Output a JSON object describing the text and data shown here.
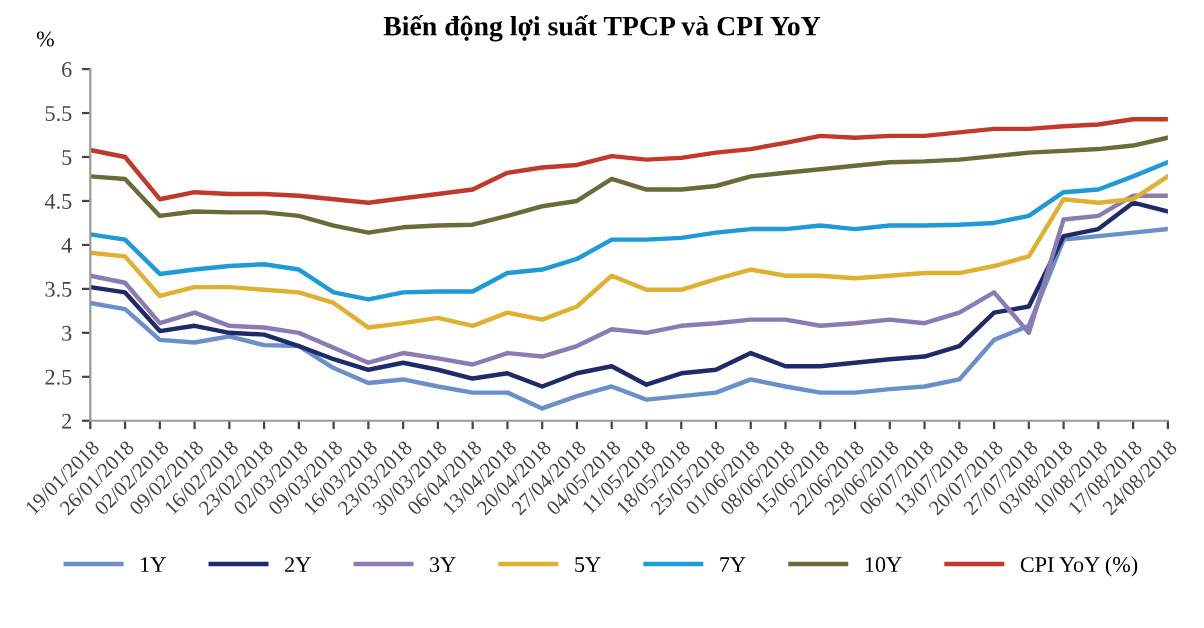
{
  "chart_data": {
    "type": "line",
    "title": "Biến động lợi suất TPCP và CPI YoY",
    "ylabel": "%",
    "x": [
      "2018-01-19",
      "2018-01-26",
      "2018-02-02",
      "2018-02-09",
      "2018-02-16",
      "2018-02-23",
      "2018-03-02",
      "2018-03-09",
      "2018-03-16",
      "2018-03-23",
      "2018-03-30",
      "2018-04-06",
      "2018-04-13",
      "2018-04-20",
      "2018-04-27",
      "2018-05-04",
      "2018-05-11",
      "2018-05-18",
      "2018-05-25",
      "2018-06-01",
      "2018-06-08",
      "2018-06-15",
      "2018-06-22",
      "2018-06-29",
      "2018-07-06",
      "2018-07-13",
      "2018-07-20",
      "2018-07-27",
      "2018-08-03",
      "2018-08-10",
      "2018-08-17",
      "2018-08-24"
    ],
    "series": [
      {
        "name": "1Y",
        "color": "#6a8fc9",
        "values": [
          3.34,
          3.27,
          2.92,
          2.89,
          2.96,
          2.86,
          2.85,
          2.6,
          2.43,
          2.47,
          2.39,
          2.32,
          2.32,
          2.14,
          2.28,
          2.39,
          2.24,
          2.28,
          2.32,
          2.47,
          2.39,
          2.32,
          2.32,
          2.36,
          2.39,
          2.47,
          2.92,
          3.08,
          4.06,
          4.1,
          4.14,
          4.18
        ]
      },
      {
        "name": "2Y",
        "color": "#1f2a6b",
        "values": [
          3.52,
          3.46,
          3.02,
          3.08,
          3.0,
          2.98,
          2.85,
          2.7,
          2.58,
          2.66,
          2.58,
          2.48,
          2.54,
          2.39,
          2.54,
          2.62,
          2.41,
          2.54,
          2.58,
          2.77,
          2.62,
          2.62,
          2.66,
          2.7,
          2.73,
          2.85,
          3.23,
          3.3,
          4.1,
          4.18,
          4.48,
          4.38
        ]
      },
      {
        "name": "3Y",
        "color": "#8a7bb5",
        "values": [
          3.65,
          3.57,
          3.11,
          3.23,
          3.08,
          3.06,
          3.0,
          2.83,
          2.66,
          2.77,
          2.71,
          2.64,
          2.77,
          2.73,
          2.85,
          3.04,
          3.0,
          3.08,
          3.11,
          3.15,
          3.15,
          3.08,
          3.11,
          3.15,
          3.11,
          3.23,
          3.46,
          3.0,
          4.29,
          4.33,
          4.56,
          4.56
        ]
      },
      {
        "name": "5Y",
        "color": "#e0b030",
        "values": [
          3.91,
          3.87,
          3.42,
          3.52,
          3.52,
          3.49,
          3.46,
          3.34,
          3.06,
          3.11,
          3.17,
          3.08,
          3.23,
          3.15,
          3.3,
          3.65,
          3.49,
          3.49,
          3.61,
          3.72,
          3.65,
          3.65,
          3.62,
          3.65,
          3.68,
          3.68,
          3.76,
          3.87,
          4.52,
          4.48,
          4.52,
          4.78
        ]
      },
      {
        "name": "7Y",
        "color": "#1e9ad6",
        "values": [
          4.12,
          4.06,
          3.67,
          3.72,
          3.76,
          3.78,
          3.72,
          3.46,
          3.38,
          3.46,
          3.47,
          3.47,
          3.68,
          3.72,
          3.84,
          4.06,
          4.06,
          4.08,
          4.14,
          4.18,
          4.18,
          4.22,
          4.18,
          4.22,
          4.22,
          4.23,
          4.25,
          4.33,
          4.6,
          4.63,
          4.78,
          4.94
        ]
      },
      {
        "name": "10Y",
        "color": "#6b6b3a",
        "values": [
          4.78,
          4.75,
          4.33,
          4.38,
          4.37,
          4.37,
          4.33,
          4.22,
          4.14,
          4.2,
          4.22,
          4.23,
          4.33,
          4.44,
          4.5,
          4.75,
          4.63,
          4.63,
          4.67,
          4.78,
          4.82,
          4.86,
          4.9,
          4.94,
          4.95,
          4.97,
          5.01,
          5.05,
          5.07,
          5.09,
          5.13,
          5.22
        ]
      },
      {
        "name": "CPI YoY (%)",
        "color": "#c0392b",
        "values": [
          5.08,
          5.0,
          4.52,
          4.6,
          4.58,
          4.58,
          4.56,
          4.52,
          4.48,
          4.53,
          4.58,
          4.63,
          4.82,
          4.88,
          4.91,
          5.01,
          4.97,
          4.99,
          5.05,
          5.09,
          5.16,
          5.24,
          5.22,
          5.24,
          5.24,
          5.28,
          5.32,
          5.32,
          5.35,
          5.37,
          5.43,
          5.43
        ]
      }
    ],
    "xlim": [
      "2018-01-19",
      "2018-08-24"
    ],
    "xticks": [
      {
        "value": "2018-01-19",
        "label": "19/01/2018"
      },
      {
        "value": "2018-01-26",
        "label": "26/01/2018"
      },
      {
        "value": "2018-02-02",
        "label": "02/02/2018"
      },
      {
        "value": "2018-02-09",
        "label": "09/02/2018"
      },
      {
        "value": "2018-02-16",
        "label": "16/02/2018"
      },
      {
        "value": "2018-02-23",
        "label": "23/02/2018"
      },
      {
        "value": "2018-03-02",
        "label": "02/03/2018"
      },
      {
        "value": "2018-03-09",
        "label": "09/03/2018"
      },
      {
        "value": "2018-03-16",
        "label": "16/03/2018"
      },
      {
        "value": "2018-03-23",
        "label": "23/03/2018"
      },
      {
        "value": "2018-03-30",
        "label": "30/03/2018"
      },
      {
        "value": "2018-04-06",
        "label": "06/04/2018"
      },
      {
        "value": "2018-04-13",
        "label": "13/04/2018"
      },
      {
        "value": "2018-04-20",
        "label": "20/04/2018"
      },
      {
        "value": "2018-04-27",
        "label": "27/04/2018"
      },
      {
        "value": "2018-05-04",
        "label": "04/05/2018"
      },
      {
        "value": "2018-05-11",
        "label": "11/05/2018"
      },
      {
        "value": "2018-05-18",
        "label": "18/05/2018"
      },
      {
        "value": "2018-05-25",
        "label": "25/05/2018"
      },
      {
        "value": "2018-06-01",
        "label": "01/06/2018"
      },
      {
        "value": "2018-06-08",
        "label": "08/06/2018"
      },
      {
        "value": "2018-06-15",
        "label": "15/06/2018"
      },
      {
        "value": "2018-06-22",
        "label": "22/06/2018"
      },
      {
        "value": "2018-06-29",
        "label": "29/06/2018"
      },
      {
        "value": "2018-07-06",
        "label": "06/07/2018"
      },
      {
        "value": "2018-07-13",
        "label": "13/07/2018"
      },
      {
        "value": "2018-07-20",
        "label": "20/07/2018"
      },
      {
        "value": "2018-07-27",
        "label": "27/07/2018"
      },
      {
        "value": "2018-08-03",
        "label": "03/08/2018"
      },
      {
        "value": "2018-08-10",
        "label": "10/08/2018"
      },
      {
        "value": "2018-08-17",
        "label": "17/08/2018"
      },
      {
        "value": "2018-08-24",
        "label": "24/08/2018"
      }
    ],
    "ylim": [
      2,
      6
    ],
    "yticks": [
      2,
      2.5,
      3,
      3.5,
      4,
      4.5,
      5,
      5.5,
      6
    ],
    "grid": false,
    "legend": "bottom",
    "marker": "none",
    "line_style": "solid"
  }
}
